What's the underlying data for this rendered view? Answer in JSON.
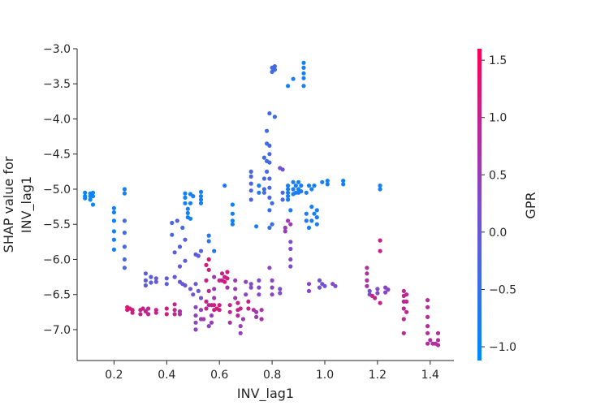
{
  "chart_data": {
    "type": "scatter",
    "title": "",
    "xlabel": "INV_lag1",
    "ylabel_lines": [
      "SHAP value for",
      "INV_lag1"
    ],
    "xlim": [
      0.06,
      1.49
    ],
    "ylim": [
      -7.44,
      -3.0
    ],
    "x_ticks": [
      0.2,
      0.4,
      0.6,
      0.8,
      1.0,
      1.2,
      1.4
    ],
    "x_tick_labels": [
      "0.2",
      "0.4",
      "0.6",
      "0.8",
      "1.0",
      "1.2",
      "1.4"
    ],
    "y_ticks": [
      -3.0,
      -3.5,
      -4.0,
      -4.5,
      -5.0,
      -5.5,
      -6.0,
      -6.5,
      -7.0
    ],
    "y_tick_labels": [
      "−3.0",
      "−3.5",
      "−4.0",
      "−4.5",
      "−5.0",
      "−5.5",
      "−6.0",
      "−6.5",
      "−7.0"
    ],
    "grid": false,
    "colorbar": {
      "label": "GPR",
      "range": [
        -1.12,
        1.6
      ],
      "ticks": [
        1.5,
        1.0,
        0.5,
        0.0,
        -0.5,
        -1.0
      ],
      "tick_labels": [
        "1.5",
        "1.0",
        "0.5",
        "0.0",
        "−0.5",
        "−1.0"
      ],
      "colors": [
        "#008afb",
        "#7b4ecf",
        "#ff0051"
      ]
    },
    "points": [
      [
        0.09,
        -5.05,
        -1.0
      ],
      [
        0.09,
        -5.1,
        -1.0
      ],
      [
        0.09,
        -5.13,
        -1.0
      ],
      [
        0.11,
        -5.06,
        -1.0
      ],
      [
        0.11,
        -5.1,
        -1.0
      ],
      [
        0.11,
        -5.15,
        -1.0
      ],
      [
        0.12,
        -5.05,
        -1.0
      ],
      [
        0.12,
        -5.1,
        -1.0
      ],
      [
        0.12,
        -5.22,
        -1.0
      ],
      [
        0.2,
        -5.27,
        -0.9
      ],
      [
        0.2,
        -5.33,
        -0.9
      ],
      [
        0.2,
        -5.45,
        -0.9
      ],
      [
        0.2,
        -5.6,
        -0.9
      ],
      [
        0.2,
        -5.72,
        -0.9
      ],
      [
        0.2,
        -5.86,
        -0.9
      ],
      [
        0.24,
        -5.0,
        -0.9
      ],
      [
        0.24,
        -5.06,
        -0.9
      ],
      [
        0.24,
        -5.45,
        -0.4
      ],
      [
        0.24,
        -5.62,
        -0.4
      ],
      [
        0.24,
        -5.82,
        -0.4
      ],
      [
        0.24,
        -6.0,
        -0.3
      ],
      [
        0.24,
        -6.12,
        -0.3
      ],
      [
        0.25,
        -6.68,
        1.2
      ],
      [
        0.25,
        -6.72,
        1.2
      ],
      [
        0.26,
        -6.7,
        1.2
      ],
      [
        0.27,
        -6.72,
        1.1
      ],
      [
        0.27,
        -6.76,
        1.1
      ],
      [
        0.3,
        -6.72,
        1.0
      ],
      [
        0.3,
        -6.78,
        1.0
      ],
      [
        0.31,
        -6.7,
        1.0
      ],
      [
        0.32,
        -6.74,
        1.0
      ],
      [
        0.33,
        -6.7,
        0.9
      ],
      [
        0.33,
        -6.78,
        0.9
      ],
      [
        0.36,
        -6.72,
        1.0
      ],
      [
        0.36,
        -6.76,
        1.0
      ],
      [
        0.4,
        -6.7,
        1.1
      ],
      [
        0.4,
        -6.78,
        1.1
      ],
      [
        0.43,
        -6.64,
        0.9
      ],
      [
        0.43,
        -6.72,
        0.9
      ],
      [
        0.43,
        -6.78,
        0.9
      ],
      [
        0.45,
        -6.74,
        0.7
      ],
      [
        0.45,
        -6.78,
        0.7
      ],
      [
        0.32,
        -6.2,
        -0.1
      ],
      [
        0.32,
        -6.3,
        -0.1
      ],
      [
        0.32,
        -6.37,
        -0.1
      ],
      [
        0.34,
        -6.25,
        -0.1
      ],
      [
        0.34,
        -6.33,
        -0.1
      ],
      [
        0.36,
        -6.27,
        0.0
      ],
      [
        0.36,
        -6.32,
        0.0
      ],
      [
        0.4,
        -6.27,
        -0.1
      ],
      [
        0.4,
        -6.35,
        -0.1
      ],
      [
        0.42,
        -5.48,
        -0.3
      ],
      [
        0.42,
        -5.65,
        -0.3
      ],
      [
        0.43,
        -5.9,
        -0.1
      ],
      [
        0.43,
        -6.25,
        -0.1
      ],
      [
        0.44,
        -5.45,
        -0.2
      ],
      [
        0.45,
        -5.82,
        -0.2
      ],
      [
        0.45,
        -6.1,
        0.0
      ],
      [
        0.45,
        -6.32,
        0.0
      ],
      [
        0.46,
        -5.55,
        -0.3
      ],
      [
        0.46,
        -6.35,
        0.0
      ],
      [
        0.47,
        -5.06,
        -0.9
      ],
      [
        0.47,
        -5.12,
        -0.9
      ],
      [
        0.47,
        -5.2,
        -0.9
      ],
      [
        0.48,
        -5.28,
        -0.9
      ],
      [
        0.48,
        -5.34,
        -0.9
      ],
      [
        0.48,
        -5.4,
        -0.9
      ],
      [
        0.49,
        -5.07,
        -0.9
      ],
      [
        0.49,
        -5.2,
        -0.9
      ],
      [
        0.49,
        -5.42,
        -0.9
      ],
      [
        0.5,
        -5.1,
        -0.9
      ],
      [
        0.53,
        -5.04,
        -0.9
      ],
      [
        0.53,
        -5.1,
        -0.9
      ],
      [
        0.53,
        -5.15,
        -0.9
      ],
      [
        0.53,
        -5.2,
        -0.9
      ],
      [
        0.47,
        -5.72,
        -0.2
      ],
      [
        0.47,
        -6.02,
        -0.1
      ],
      [
        0.47,
        -6.37,
        0.0
      ],
      [
        0.49,
        -6.42,
        0.1
      ],
      [
        0.5,
        -6.5,
        0.2
      ],
      [
        0.51,
        -5.93,
        -0.1
      ],
      [
        0.51,
        -6.35,
        0.0
      ],
      [
        0.52,
        -5.95,
        -0.1
      ],
      [
        0.52,
        -6.45,
        0.0
      ],
      [
        0.53,
        -5.88,
        -0.2
      ],
      [
        0.53,
        -6.55,
        0.2
      ],
      [
        0.51,
        -6.68,
        0.4
      ],
      [
        0.51,
        -6.8,
        0.4
      ],
      [
        0.51,
        -6.9,
        0.4
      ],
      [
        0.51,
        -7.0,
        0.4
      ],
      [
        0.53,
        -6.72,
        0.5
      ],
      [
        0.53,
        -6.85,
        0.5
      ],
      [
        0.54,
        -6.85,
        0.6
      ],
      [
        0.55,
        -6.08,
        1.1
      ],
      [
        0.55,
        -6.3,
        1.0
      ],
      [
        0.55,
        -6.6,
        1.0
      ],
      [
        0.55,
        -6.7,
        0.9
      ],
      [
        0.56,
        -5.66,
        -0.7
      ],
      [
        0.56,
        -5.74,
        -0.7
      ],
      [
        0.56,
        -6.0,
        1.2
      ],
      [
        0.56,
        -6.15,
        1.1
      ],
      [
        0.56,
        -6.45,
        0.9
      ],
      [
        0.56,
        -6.65,
        0.9
      ],
      [
        0.56,
        -6.95,
        0.4
      ],
      [
        0.57,
        -6.8,
        0.5
      ],
      [
        0.57,
        -6.9,
        0.5
      ],
      [
        0.57,
        -6.65,
        1.0
      ],
      [
        0.58,
        -6.65,
        1.1
      ],
      [
        0.58,
        -6.72,
        1.1
      ],
      [
        0.58,
        -5.88,
        -0.7
      ],
      [
        0.58,
        -6.25,
        0.6
      ],
      [
        0.58,
        -6.42,
        0.6
      ],
      [
        0.58,
        -6.55,
        0.6
      ],
      [
        0.59,
        -6.7,
        1.1
      ],
      [
        0.6,
        -6.3,
        1.0
      ],
      [
        0.6,
        -6.65,
        1.1
      ],
      [
        0.6,
        -6.72,
        1.1
      ],
      [
        0.61,
        -6.2,
        1.0
      ],
      [
        0.61,
        -6.3,
        1.0
      ],
      [
        0.62,
        -6.25,
        1.1
      ],
      [
        0.62,
        -6.32,
        1.1
      ],
      [
        0.62,
        -4.95,
        -0.8
      ],
      [
        0.63,
        -6.18,
        1.1
      ],
      [
        0.63,
        -6.27,
        1.1
      ],
      [
        0.63,
        -6.4,
        0.7
      ],
      [
        0.64,
        -6.65,
        0.9
      ],
      [
        0.64,
        -6.75,
        0.9
      ],
      [
        0.64,
        -6.9,
        0.7
      ],
      [
        0.65,
        -5.22,
        -0.9
      ],
      [
        0.65,
        -5.35,
        -0.9
      ],
      [
        0.65,
        -5.45,
        -0.9
      ],
      [
        0.65,
        -5.5,
        -0.9
      ],
      [
        0.66,
        -6.3,
        0.6
      ],
      [
        0.66,
        -6.42,
        0.6
      ],
      [
        0.66,
        -6.55,
        0.6
      ],
      [
        0.67,
        -6.62,
        1.0
      ],
      [
        0.67,
        -6.72,
        1.0
      ],
      [
        0.67,
        -6.8,
        0.9
      ],
      [
        0.68,
        -6.7,
        0.9
      ],
      [
        0.68,
        -6.95,
        0.5
      ],
      [
        0.68,
        -7.05,
        0.5
      ],
      [
        0.69,
        -6.85,
        0.6
      ],
      [
        0.7,
        -6.32,
        0.4
      ],
      [
        0.7,
        -6.5,
        0.4
      ],
      [
        0.71,
        -6.6,
        1.0
      ],
      [
        0.71,
        -6.7,
        1.0
      ],
      [
        0.72,
        -6.35,
        0.3
      ],
      [
        0.72,
        -6.4,
        0.3
      ],
      [
        0.72,
        -4.75,
        -0.3
      ],
      [
        0.72,
        -4.82,
        -0.3
      ],
      [
        0.72,
        -4.92,
        -0.3
      ],
      [
        0.72,
        -5.02,
        -0.3
      ],
      [
        0.72,
        -5.15,
        -0.3
      ],
      [
        0.73,
        -6.72,
        0.8
      ],
      [
        0.74,
        -6.75,
        0.6
      ],
      [
        0.74,
        -6.82,
        0.6
      ],
      [
        0.74,
        -5.53,
        -0.9
      ],
      [
        0.75,
        -6.3,
        0.3
      ],
      [
        0.75,
        -6.4,
        0.3
      ],
      [
        0.75,
        -6.5,
        0.3
      ],
      [
        0.75,
        -4.95,
        -0.8
      ],
      [
        0.75,
        -5.05,
        -0.8
      ],
      [
        0.76,
        -6.72,
        0.7
      ],
      [
        0.76,
        -6.85,
        0.7
      ],
      [
        0.77,
        -5.0,
        -0.4
      ],
      [
        0.77,
        -5.05,
        -0.4
      ],
      [
        0.77,
        -4.55,
        -0.4
      ],
      [
        0.77,
        -4.85,
        -0.4
      ],
      [
        0.78,
        -4.17,
        -0.4
      ],
      [
        0.78,
        -4.35,
        -0.4
      ],
      [
        0.78,
        -4.6,
        -0.4
      ],
      [
        0.78,
        -4.75,
        -0.3
      ],
      [
        0.79,
        -4.38,
        -0.4
      ],
      [
        0.79,
        -4.5,
        -0.4
      ],
      [
        0.79,
        -4.62,
        -0.4
      ],
      [
        0.79,
        -3.92,
        -0.4
      ],
      [
        0.79,
        -4.85,
        -0.3
      ],
      [
        0.79,
        -4.98,
        -0.3
      ],
      [
        0.79,
        -5.12,
        -0.4
      ],
      [
        0.79,
        -5.3,
        -0.5
      ],
      [
        0.79,
        -5.55,
        -0.5
      ],
      [
        0.79,
        -6.12,
        0.4
      ],
      [
        0.8,
        -3.27,
        -0.4
      ],
      [
        0.8,
        -3.33,
        -0.4
      ],
      [
        0.81,
        -3.25,
        -0.4
      ],
      [
        0.81,
        -3.3,
        -0.4
      ],
      [
        0.81,
        -3.97,
        -0.4
      ],
      [
        0.8,
        -5.2,
        -0.5
      ],
      [
        0.8,
        -5.5,
        -0.5
      ],
      [
        0.8,
        -6.3,
        0.4
      ],
      [
        0.8,
        -6.4,
        0.4
      ],
      [
        0.8,
        -6.5,
        0.4
      ],
      [
        0.83,
        -4.7,
        0.1
      ],
      [
        0.83,
        -6.42,
        0.2
      ],
      [
        0.83,
        -6.48,
        0.2
      ],
      [
        0.84,
        -4.72,
        0.1
      ],
      [
        0.84,
        -5.05,
        -0.3
      ],
      [
        0.84,
        -5.15,
        -0.3
      ],
      [
        0.85,
        -5.55,
        0.5
      ],
      [
        0.85,
        -5.6,
        0.5
      ],
      [
        0.86,
        -3.53,
        -0.9
      ],
      [
        0.86,
        -4.95,
        -0.8
      ],
      [
        0.86,
        -5.0,
        -0.8
      ],
      [
        0.86,
        -5.05,
        -0.8
      ],
      [
        0.86,
        -5.1,
        -0.8
      ],
      [
        0.86,
        -5.15,
        -0.8
      ],
      [
        0.86,
        -5.45,
        0.6
      ],
      [
        0.87,
        -5.3,
        -0.8
      ],
      [
        0.87,
        -5.5,
        0.6
      ],
      [
        0.88,
        -3.43,
        -0.9
      ],
      [
        0.87,
        -5.75,
        0.3
      ],
      [
        0.87,
        -5.85,
        0.3
      ],
      [
        0.87,
        -6.0,
        0.3
      ],
      [
        0.87,
        -6.1,
        0.3
      ],
      [
        0.88,
        -4.9,
        -0.8
      ],
      [
        0.88,
        -5.0,
        -0.8
      ],
      [
        0.88,
        -5.07,
        -0.8
      ],
      [
        0.89,
        -4.95,
        -0.8
      ],
      [
        0.89,
        -5.05,
        -0.8
      ],
      [
        0.9,
        -4.9,
        -0.9
      ],
      [
        0.9,
        -5.0,
        -0.9
      ],
      [
        0.9,
        -5.05,
        -0.9
      ],
      [
        0.91,
        -4.95,
        -0.8
      ],
      [
        0.91,
        -5.03,
        -0.8
      ],
      [
        0.92,
        -3.2,
        -0.9
      ],
      [
        0.92,
        -3.27,
        -0.9
      ],
      [
        0.92,
        -3.35,
        -0.9
      ],
      [
        0.92,
        -3.42,
        -0.9
      ],
      [
        0.92,
        -3.53,
        -0.9
      ],
      [
        0.93,
        -5.35,
        -0.8
      ],
      [
        0.93,
        -5.45,
        -0.8
      ],
      [
        0.93,
        -5.05,
        -0.8
      ],
      [
        0.94,
        -4.95,
        -0.8
      ],
      [
        0.94,
        -5.55,
        -0.9
      ],
      [
        0.94,
        -6.35,
        0.4
      ],
      [
        0.94,
        -6.45,
        0.4
      ],
      [
        0.95,
        -5.0,
        -0.9
      ],
      [
        0.95,
        -5.25,
        -0.9
      ],
      [
        0.95,
        -5.45,
        -0.9
      ],
      [
        0.96,
        -4.95,
        -0.9
      ],
      [
        0.96,
        -5.35,
        -0.9
      ],
      [
        0.97,
        -5.3,
        -0.8
      ],
      [
        0.97,
        -5.4,
        -0.8
      ],
      [
        0.97,
        -5.5,
        -0.8
      ],
      [
        0.98,
        -6.3,
        0.2
      ],
      [
        0.98,
        -6.4,
        0.2
      ],
      [
        0.99,
        -4.9,
        -0.9
      ],
      [
        0.99,
        -6.35,
        0.1
      ],
      [
        1.0,
        -6.38,
        0.1
      ],
      [
        1.01,
        -4.88,
        -0.9
      ],
      [
        1.01,
        -4.93,
        -0.9
      ],
      [
        1.03,
        -6.35,
        0.3
      ],
      [
        1.04,
        -6.38,
        0.3
      ],
      [
        1.07,
        -4.88,
        -0.9
      ],
      [
        1.07,
        -4.93,
        -0.9
      ],
      [
        1.16,
        -6.12,
        0.7
      ],
      [
        1.16,
        -6.2,
        0.7
      ],
      [
        1.16,
        -6.3,
        0.7
      ],
      [
        1.16,
        -6.38,
        0.7
      ],
      [
        1.17,
        -6.45,
        0.2
      ],
      [
        1.17,
        -6.5,
        0.2
      ],
      [
        1.18,
        -6.52,
        1.0
      ],
      [
        1.19,
        -6.55,
        1.0
      ],
      [
        1.2,
        -6.42,
        0.3
      ],
      [
        1.2,
        -6.48,
        0.3
      ],
      [
        1.21,
        -4.95,
        -0.9
      ],
      [
        1.21,
        -5.0,
        -0.9
      ],
      [
        1.21,
        -5.73,
        1.0
      ],
      [
        1.21,
        -5.88,
        1.0
      ],
      [
        1.21,
        -6.62,
        1.0
      ],
      [
        1.23,
        -6.4,
        0.4
      ],
      [
        1.23,
        -6.47,
        0.4
      ],
      [
        1.24,
        -6.43,
        0.4
      ],
      [
        1.3,
        -6.45,
        0.9
      ],
      [
        1.3,
        -6.52,
        0.9
      ],
      [
        1.3,
        -6.6,
        0.9
      ],
      [
        1.3,
        -6.7,
        0.9
      ],
      [
        1.3,
        -6.85,
        0.9
      ],
      [
        1.3,
        -7.05,
        0.9
      ],
      [
        1.31,
        -6.5,
        0.9
      ],
      [
        1.31,
        -6.6,
        0.9
      ],
      [
        1.31,
        -6.75,
        0.9
      ],
      [
        1.39,
        -6.58,
        0.8
      ],
      [
        1.39,
        -6.68,
        0.8
      ],
      [
        1.39,
        -6.82,
        0.8
      ],
      [
        1.39,
        -6.95,
        0.8
      ],
      [
        1.39,
        -7.05,
        0.8
      ],
      [
        1.39,
        -7.2,
        0.8
      ],
      [
        1.4,
        -7.15,
        0.8
      ],
      [
        1.41,
        -7.2,
        0.8
      ],
      [
        1.42,
        -7.2,
        0.8
      ],
      [
        1.43,
        -7.05,
        0.8
      ],
      [
        1.43,
        -7.15,
        0.8
      ],
      [
        1.43,
        -7.22,
        0.8
      ]
    ]
  }
}
